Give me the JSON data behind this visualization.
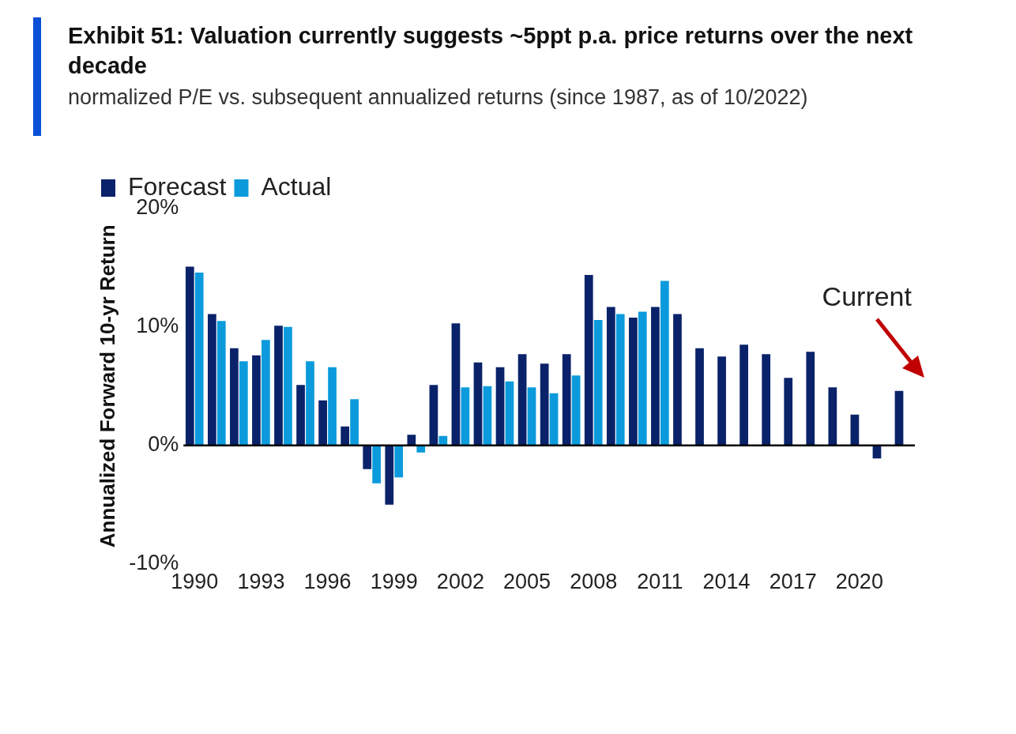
{
  "chart_data": {
    "type": "bar",
    "title": "Exhibit 51: Valuation currently suggests ~5ppt p.a. price returns over the next decade",
    "subtitle": "normalized P/E vs. subsequent annualized returns (since 1987, as of 10/2022)",
    "ylabel": "Annualized Forward 10-yr Return",
    "categories": [
      "1990",
      null,
      null,
      "1993",
      null,
      null,
      "1996",
      null,
      null,
      "1999",
      null,
      null,
      "2002",
      null,
      null,
      "2005",
      null,
      null,
      "2008",
      null,
      null,
      "2011",
      null,
      null,
      "2014",
      null,
      null,
      "2017",
      null,
      null,
      "2020",
      null,
      null
    ],
    "series": [
      {
        "name": "Forecast",
        "color": "#0a2269",
        "values": [
          15.1,
          11.1,
          8.2,
          7.6,
          10.1,
          5.1,
          3.8,
          1.6,
          -2.0,
          -5.0,
          0.9,
          5.1,
          10.3,
          7.0,
          6.6,
          7.7,
          6.9,
          7.7,
          14.4,
          11.7,
          10.8,
          11.7,
          11.1,
          8.2,
          7.5,
          8.5,
          7.7,
          5.7,
          7.9,
          4.9,
          2.6,
          -1.1,
          4.6
        ]
      },
      {
        "name": "Actual",
        "color": "#0b9bdc",
        "values": [
          14.6,
          10.5,
          7.1,
          8.9,
          10.0,
          7.1,
          6.6,
          3.9,
          -3.2,
          -2.7,
          -0.6,
          0.8,
          4.9,
          5.0,
          5.4,
          4.9,
          4.4,
          5.9,
          10.6,
          11.1,
          11.3,
          13.9,
          null,
          null,
          null,
          null,
          null,
          null,
          null,
          null,
          null,
          null,
          null
        ]
      }
    ],
    "ylim": [
      -10,
      20
    ],
    "yticks": [
      {
        "value": -10,
        "label": "-10%"
      },
      {
        "value": 0,
        "label": "0%"
      },
      {
        "value": 10,
        "label": "10%"
      },
      {
        "value": 20,
        "label": "20%"
      }
    ],
    "grid": false,
    "legend": "top",
    "ref_lines": [
      {
        "axis": "y",
        "value": 0,
        "color": "#000000"
      }
    ],
    "annotations": [
      "Current"
    ]
  }
}
